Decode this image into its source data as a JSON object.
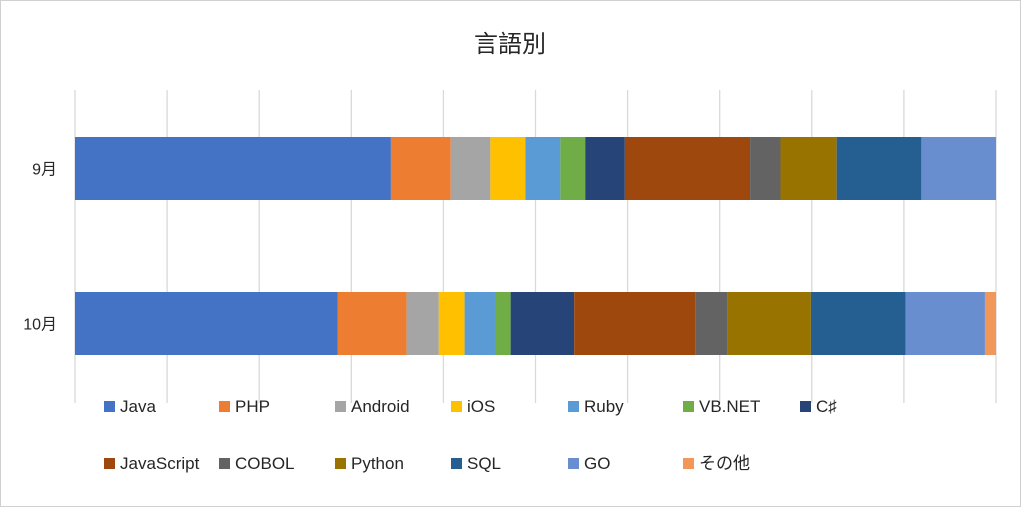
{
  "chart_data": {
    "type": "bar",
    "orientation": "horizontal",
    "stacked": "100%",
    "title": "言語別",
    "categories": [
      "9月",
      "10月"
    ],
    "series": [
      {
        "name": "Java",
        "color": "#4472C4",
        "values": [
          34.3,
          28.5
        ]
      },
      {
        "name": "PHP",
        "color": "#ED7D31",
        "values": [
          6.5,
          7.5
        ]
      },
      {
        "name": "Android",
        "color": "#A5A5A5",
        "values": [
          4.3,
          3.5
        ]
      },
      {
        "name": "iOS",
        "color": "#FFC000",
        "values": [
          3.8,
          2.8
        ]
      },
      {
        "name": "Ruby",
        "color": "#5B9BD5",
        "values": [
          3.8,
          3.3
        ]
      },
      {
        "name": "VB.NET",
        "color": "#70AD47",
        "values": [
          2.7,
          1.7
        ]
      },
      {
        "name": "C♯",
        "color": "#264478",
        "values": [
          4.3,
          6.9
        ]
      },
      {
        "name": "JavaScript",
        "color": "#9E480E",
        "values": [
          13.6,
          13.2
        ]
      },
      {
        "name": "COBOL",
        "color": "#636363",
        "values": [
          3.3,
          3.4
        ]
      },
      {
        "name": "Python",
        "color": "#997300",
        "values": [
          6.1,
          9.1
        ]
      },
      {
        "name": "SQL",
        "color": "#255E91",
        "values": [
          9.2,
          10.3
        ]
      },
      {
        "name": "GO",
        "color": "#698ED0",
        "values": [
          8.1,
          8.6
        ]
      },
      {
        "name": "その他",
        "color": "#F1975A",
        "values": [
          0.0,
          1.2
        ]
      }
    ],
    "xlim": [
      0,
      100
    ],
    "x_gridlines": 10,
    "grid": true,
    "legend": "bottom"
  }
}
